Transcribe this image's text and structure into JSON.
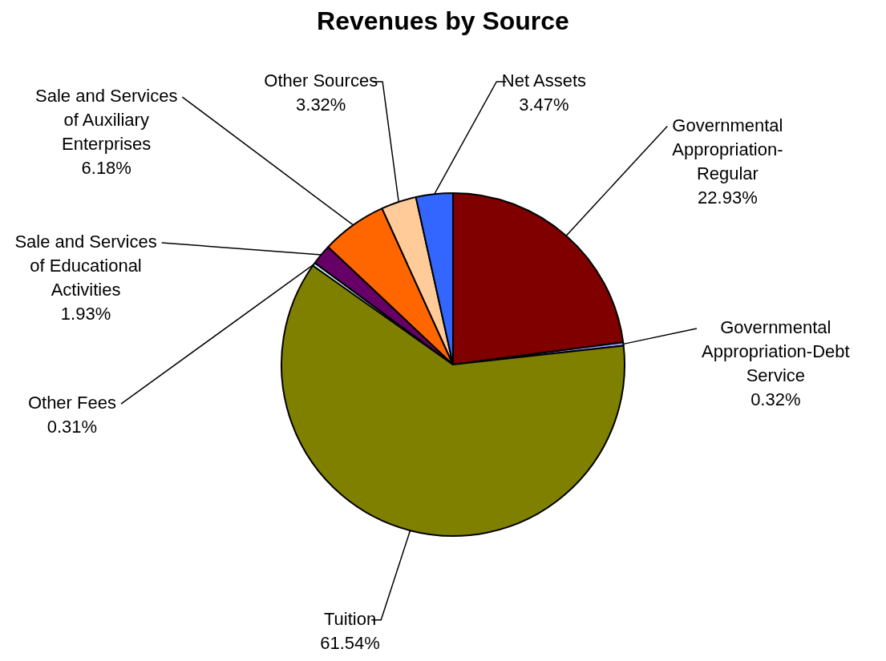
{
  "chart_data": {
    "type": "pie",
    "title": "Revenues by Source",
    "categories": [
      "Governmental Appropriation-Regular",
      "Governmental Appropriation-Debt Service",
      "Tuition",
      "Other Fees",
      "Sale and Services of Educational Activities",
      "Sale and Services of Auxiliary Enterprises",
      "Other Sources",
      "Net Assets"
    ],
    "values": [
      22.93,
      0.32,
      61.54,
      0.31,
      1.93,
      6.18,
      3.32,
      3.47
    ],
    "value_labels": [
      "22.93%",
      "0.32%",
      "61.54%",
      "0.31%",
      "1.93%",
      "6.18%",
      "3.32%",
      "3.47%"
    ],
    "colors": [
      "#800000",
      "#9999ff",
      "#808000",
      "#ccffff",
      "#660066",
      "#ff6600",
      "#ffcc99",
      "#3366ff"
    ],
    "legend": false
  }
}
